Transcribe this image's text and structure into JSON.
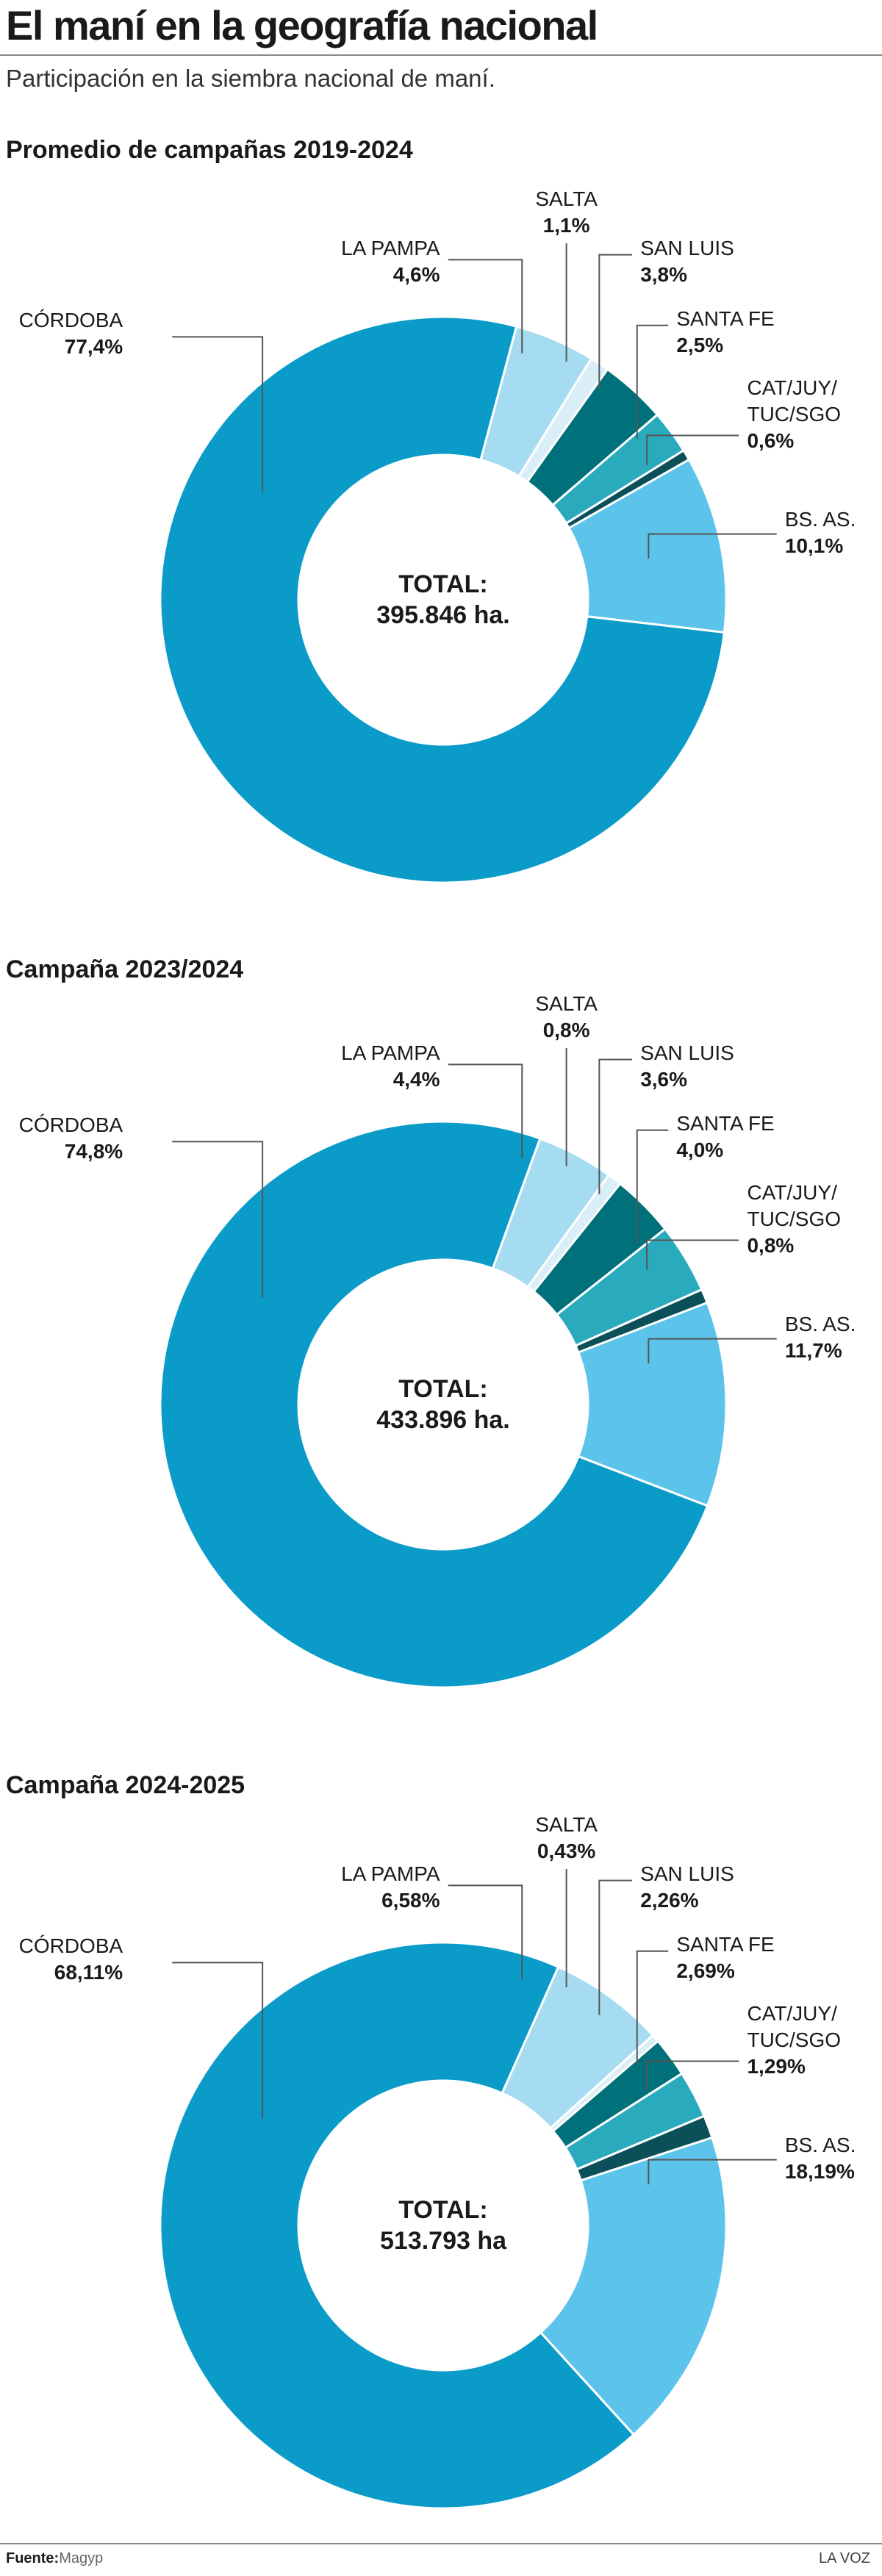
{
  "header": {
    "title": "El maní en la geografía nacional",
    "subtitle": "Participación en la siembra nacional de maní."
  },
  "chart_data": [
    {
      "type": "pie",
      "donut": true,
      "title": "Promedio de campañas 2019-2024",
      "total_label": "TOTAL:",
      "total": "395.846 ha.",
      "categories": [
        "CÓRDOBA",
        "LA PAMPA",
        "SALTA",
        "SAN LUIS",
        "SANTA FE",
        "CAT/JUY/\nTUC/SGO",
        "BS. AS."
      ],
      "values": [
        77.4,
        4.6,
        1.1,
        3.8,
        2.5,
        0.6,
        10.1
      ],
      "value_labels": [
        "77,4%",
        "4,6%",
        "1,1%",
        "3,8%",
        "2,5%",
        "0,6%",
        "10,1%"
      ],
      "colors": [
        "#0a9bc9",
        "#a6dcf1",
        "#d9eef6",
        "#00707a",
        "#2aabbd",
        "#0b4f59",
        "#5cc3ea"
      ]
    },
    {
      "type": "pie",
      "donut": true,
      "title": "Campaña 2023/2024",
      "total_label": "TOTAL:",
      "total": "433.896 ha.",
      "categories": [
        "CÓRDOBA",
        "LA PAMPA",
        "SALTA",
        "SAN LUIS",
        "SANTA FE",
        "CAT/JUY/\nTUC/SGO",
        "BS. AS."
      ],
      "values": [
        74.8,
        4.4,
        0.8,
        3.6,
        4.0,
        0.8,
        11.7
      ],
      "value_labels": [
        "74,8%",
        "4,4%",
        "0,8%",
        "3,6%",
        "4,0%",
        "0,8%",
        "11,7%"
      ],
      "colors": [
        "#0a9bc9",
        "#a6dcf1",
        "#d9eef6",
        "#00707a",
        "#2aabbd",
        "#0b4f59",
        "#5cc3ea"
      ]
    },
    {
      "type": "pie",
      "donut": true,
      "title": "Campaña 2024-2025",
      "total_label": "TOTAL:",
      "total": "513.793 ha",
      "categories": [
        "CÓRDOBA",
        "LA PAMPA",
        "SALTA",
        "SAN LUIS",
        "SANTA FE",
        "CAT/JUY/\nTUC/SGO",
        "BS. AS."
      ],
      "values": [
        68.11,
        6.58,
        0.43,
        2.26,
        2.69,
        1.29,
        18.19
      ],
      "value_labels": [
        "68,11%",
        "6,58%",
        "0,43%",
        "2,26%",
        "2,69%",
        "1,29%",
        "18,19%"
      ],
      "colors": [
        "#0a9bc9",
        "#a6dcf1",
        "#d9eef6",
        "#00707a",
        "#2aabbd",
        "#0b4f59",
        "#5cc3ea"
      ]
    }
  ],
  "footer": {
    "source_label": "Fuente:",
    "source": "Magyp",
    "credit": "LA VOZ"
  }
}
